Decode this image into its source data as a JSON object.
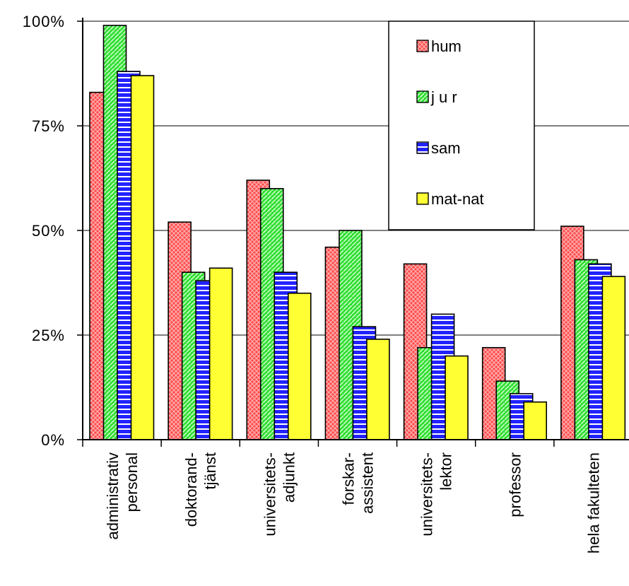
{
  "chart_data": {
    "type": "bar",
    "categories": [
      [
        "administrativ",
        "personal"
      ],
      [
        "doktorand-",
        "tjänst"
      ],
      [
        "universitets-",
        "adjunkt"
      ],
      [
        "forskar-",
        "assistent"
      ],
      [
        "universitets-",
        "lektor"
      ],
      [
        "professor"
      ],
      [
        "hela fakulteten"
      ]
    ],
    "series": [
      {
        "name": "hum",
        "color": "#ff4b4b",
        "pattern": "crosshatch",
        "values": [
          83,
          52,
          62,
          46,
          42,
          22,
          51
        ]
      },
      {
        "name": "j u r",
        "color": "#33dd33",
        "pattern": "diagonal",
        "values": [
          99,
          40,
          60,
          50,
          22,
          14,
          43
        ]
      },
      {
        "name": "sam",
        "color": "#2222ff",
        "pattern": "horizontal",
        "values": [
          88,
          38,
          40,
          27,
          30,
          11,
          42
        ]
      },
      {
        "name": "mat-nat",
        "color": "#ffff33",
        "pattern": "solid",
        "values": [
          87,
          41,
          35,
          24,
          20,
          9,
          39
        ]
      }
    ],
    "yticks": [
      "0%",
      "25%",
      "50%",
      "75%",
      "100%"
    ],
    "ylim": [
      0,
      100
    ],
    "grid": true,
    "legend_position": "top-right"
  }
}
